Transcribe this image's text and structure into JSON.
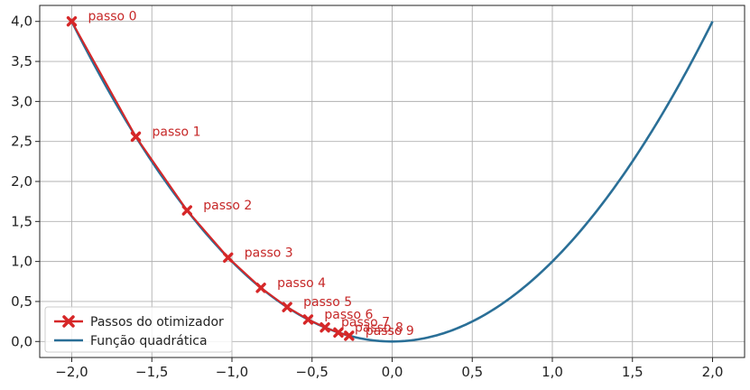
{
  "chart_data": {
    "type": "line",
    "title": "",
    "xlabel": "",
    "ylabel": "",
    "xlim": [
      -2.2,
      2.2
    ],
    "ylim": [
      -0.2,
      4.2
    ],
    "grid": true,
    "x_ticks": [
      -2.0,
      -1.5,
      -1.0,
      -0.5,
      0.0,
      0.5,
      1.0,
      1.5,
      2.0
    ],
    "x_tick_labels": [
      "−2,0",
      "−1,5",
      "−1,0",
      "−0,5",
      "0,0",
      "0,5",
      "1,0",
      "1,5",
      "2,0"
    ],
    "y_ticks": [
      0.0,
      0.5,
      1.0,
      1.5,
      2.0,
      2.5,
      3.0,
      3.5,
      4.0
    ],
    "y_tick_labels": [
      "0,0",
      "0,5",
      "1,0",
      "1,5",
      "2,0",
      "2,5",
      "3,0",
      "3,5",
      "4,0"
    ],
    "legend": {
      "placement": "bottom-left",
      "entries": [
        "Passos do otimizador",
        "Função quadrática"
      ]
    },
    "series": [
      {
        "name": "Função quadrática",
        "kind": "curve",
        "function": "y = x^2",
        "x_range": [
          -2.0,
          2.0
        ],
        "color": "#2a6f97"
      },
      {
        "name": "Passos do otimizador",
        "kind": "markers-line",
        "color": "#d62728",
        "marker": "X",
        "points": [
          {
            "x": -2.0,
            "y": 4.0,
            "label": "passo 0"
          },
          {
            "x": -1.6,
            "y": 2.56,
            "label": "passo 1"
          },
          {
            "x": -1.28,
            "y": 1.6384,
            "label": "passo 2"
          },
          {
            "x": -1.024,
            "y": 1.0486,
            "label": "passo 3"
          },
          {
            "x": -0.8192,
            "y": 0.6711,
            "label": "passo 4"
          },
          {
            "x": -0.6554,
            "y": 0.4295,
            "label": "passo 5"
          },
          {
            "x": -0.5243,
            "y": 0.2749,
            "label": "passo 6"
          },
          {
            "x": -0.4194,
            "y": 0.1759,
            "label": "passo 7"
          },
          {
            "x": -0.3355,
            "y": 0.1126,
            "label": "passo 8"
          },
          {
            "x": -0.2684,
            "y": 0.0721,
            "label": "passo 9"
          }
        ]
      }
    ]
  }
}
